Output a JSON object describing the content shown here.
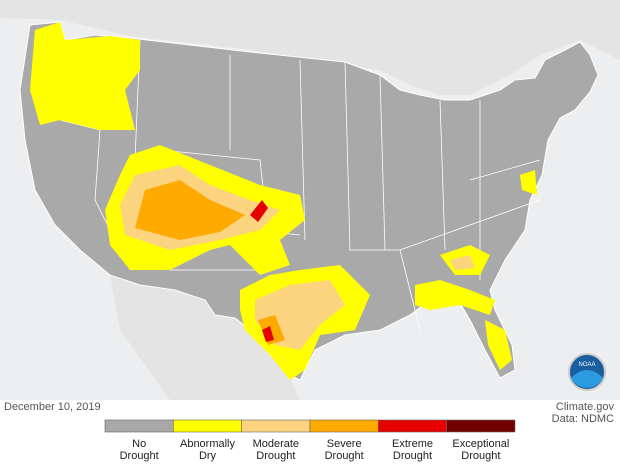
{
  "date": "December 10, 2019",
  "credit": [
    "Climate.gov",
    "Data: NDMC"
  ],
  "logo": "NOAA",
  "legend": [
    {
      "label": [
        "No",
        "Drought"
      ],
      "color": "#a9a9a9"
    },
    {
      "label": [
        "Abnormally",
        "Dry"
      ],
      "color": "#ffff00"
    },
    {
      "label": [
        "Moderate",
        "Drought"
      ],
      "color": "#fcd37f"
    },
    {
      "label": [
        "Severe",
        "Drought"
      ],
      "color": "#ffaa00"
    },
    {
      "label": [
        "Extreme",
        "Drought"
      ],
      "color": "#e60000"
    },
    {
      "label": [
        "Exceptional",
        "Drought"
      ],
      "color": "#730000"
    }
  ]
}
